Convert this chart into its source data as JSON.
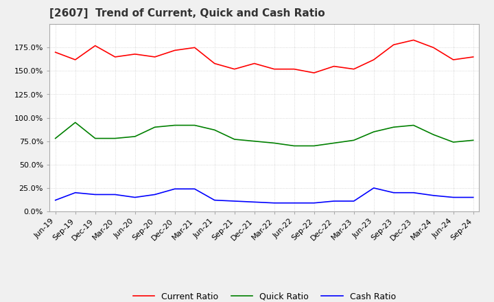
{
  "title": "[2607]  Trend of Current, Quick and Cash Ratio",
  "x_labels": [
    "Jun-19",
    "Sep-19",
    "Dec-19",
    "Mar-20",
    "Jun-20",
    "Sep-20",
    "Dec-20",
    "Mar-21",
    "Jun-21",
    "Sep-21",
    "Dec-21",
    "Mar-22",
    "Jun-22",
    "Sep-22",
    "Dec-22",
    "Mar-23",
    "Jun-23",
    "Sep-23",
    "Dec-23",
    "Mar-24",
    "Jun-24",
    "Sep-24"
  ],
  "current_ratio": [
    170,
    162,
    177,
    165,
    168,
    165,
    172,
    175,
    158,
    152,
    158,
    152,
    152,
    148,
    155,
    152,
    162,
    178,
    183,
    175,
    162,
    165
  ],
  "quick_ratio": [
    78,
    95,
    78,
    78,
    80,
    90,
    92,
    92,
    87,
    77,
    75,
    73,
    70,
    70,
    73,
    76,
    85,
    90,
    92,
    82,
    74,
    76
  ],
  "cash_ratio": [
    12,
    20,
    18,
    18,
    15,
    18,
    24,
    24,
    12,
    11,
    10,
    9,
    9,
    9,
    11,
    11,
    25,
    20,
    20,
    17,
    15,
    15
  ],
  "current_color": "#ff0000",
  "quick_color": "#008000",
  "cash_color": "#0000ff",
  "ylim": [
    0,
    200
  ],
  "yticks": [
    0,
    25,
    50,
    75,
    100,
    125,
    150,
    175
  ],
  "plot_bg_color": "#ffffff",
  "fig_bg_color": "#f0f0f0",
  "grid_color": "#cccccc",
  "title_fontsize": 11,
  "tick_fontsize": 8,
  "legend_fontsize": 9
}
